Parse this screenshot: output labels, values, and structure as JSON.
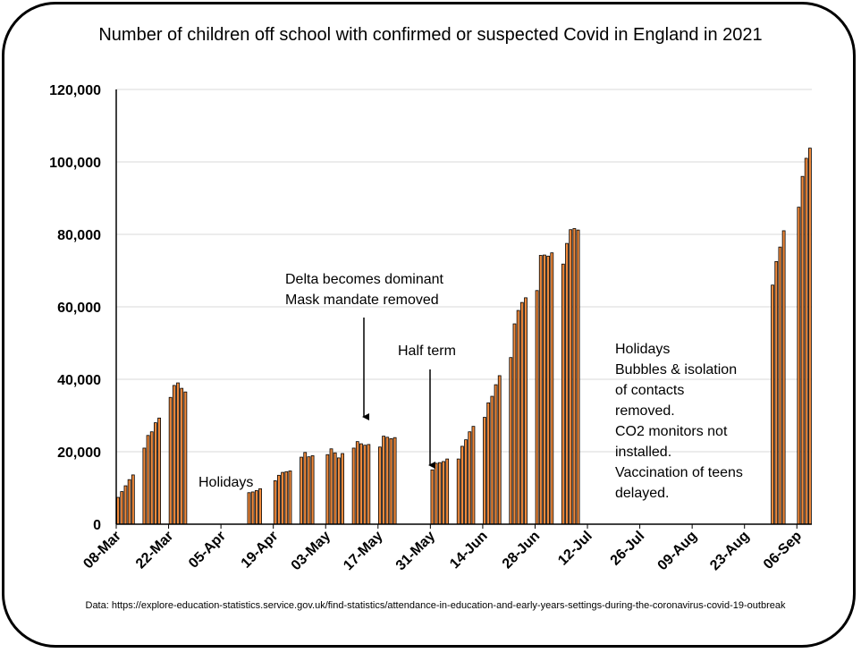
{
  "chart_data": {
    "type": "bar",
    "title": "Number of children off school with confirmed or suspected Covid in England in 2021",
    "xlabel": "",
    "ylabel": "",
    "ylim": [
      0,
      120000
    ],
    "yticks": [
      "0",
      "20,000",
      "40,000",
      "60,000",
      "80,000",
      "100,000",
      "120,000"
    ],
    "grid": true,
    "bar_color": "#f08a3c",
    "bar_edge_color": "#000000",
    "x_tick_labels": [
      "08-Mar",
      "22-Mar",
      "05-Apr",
      "19-Apr",
      "03-May",
      "17-May",
      "31-May",
      "14-Jun",
      "28-Jun",
      "12-Jul",
      "26-Jul",
      "09-Aug",
      "23-Aug",
      "06-Sep"
    ],
    "series": [
      {
        "values": [
          7400,
          9000,
          10600,
          12300,
          13600,
          0,
          0,
          21000,
          24500,
          25500,
          28000,
          29300,
          0,
          0,
          35000,
          38300,
          39000,
          37500,
          36500,
          0,
          0,
          0,
          0,
          0,
          0,
          0,
          0,
          0,
          0,
          0,
          0,
          0,
          0,
          0,
          0,
          8700,
          8900,
          9300,
          9800,
          0,
          0,
          0,
          12000,
          13500,
          14300,
          14500,
          14700,
          0,
          0,
          18500,
          19800,
          18600,
          18900,
          0,
          0,
          0,
          19200,
          20800,
          19700,
          18300,
          19500,
          0,
          0,
          21000,
          22800,
          22200,
          21800,
          22000,
          0,
          0,
          21300,
          24300,
          24000,
          23600,
          23900,
          0,
          0,
          0,
          0,
          0,
          0,
          0,
          0,
          0,
          15000,
          16800,
          17000,
          17300,
          18000,
          0,
          0,
          18000,
          21500,
          23300,
          25500,
          27000,
          0,
          0,
          29500,
          33500,
          35300,
          38500,
          41000,
          0,
          0,
          46000,
          55300,
          59000,
          61200,
          62500,
          0,
          0,
          64500,
          74200,
          74300,
          74000,
          74900,
          0,
          0,
          71800,
          77500,
          81300,
          81600,
          81200,
          0,
          0,
          0,
          0,
          0,
          0,
          0,
          0,
          0,
          0,
          0,
          0,
          0,
          0,
          0,
          0,
          0,
          0,
          0,
          0,
          0,
          0,
          0,
          0,
          0,
          0,
          0,
          0,
          0,
          0,
          0,
          0,
          0,
          0,
          0,
          0,
          0,
          0,
          0,
          0,
          0,
          0,
          0,
          0,
          0,
          0,
          0,
          0,
          0,
          0,
          0,
          66000,
          72500,
          76500,
          81000,
          0,
          0,
          0,
          87500,
          96000,
          101000,
          103800
        ]
      }
    ],
    "annotations": [
      {
        "id": "holidays-easter",
        "lines": [
          "Holidays"
        ]
      },
      {
        "id": "delta",
        "lines": [
          "Delta becomes dominant",
          "Mask mandate removed"
        ]
      },
      {
        "id": "half-term",
        "lines": [
          "Half term"
        ]
      },
      {
        "id": "summer",
        "lines": [
          "Holidays",
          "Bubbles & isolation",
          "of contacts",
          "removed.",
          "CO2 monitors not",
          "installed.",
          "Vaccination of teens",
          "delayed."
        ]
      }
    ]
  },
  "footnote": "Data: https://explore-education-statistics.service.gov.uk/find-statistics/attendance-in-education-and-early-years-settings-during-the-coronavirus-covid-19-outbreak"
}
